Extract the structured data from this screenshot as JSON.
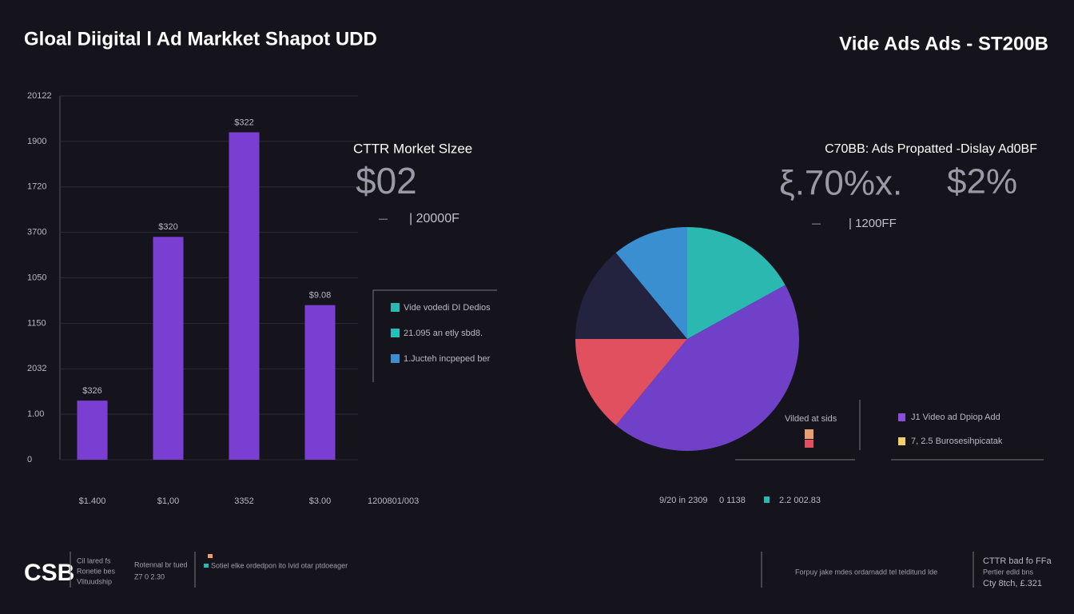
{
  "header": {
    "title": "Gloal Diigital l Ad Markket Shapot UDD",
    "subtitle": "Vide Ads Ads - ST200B"
  },
  "chart_data": [
    {
      "type": "bar",
      "categories": [
        "$1.400",
        "$1,00",
        "3352",
        "$3.00"
      ],
      "values": [
        1.3,
        4.9,
        7.2,
        3.4
      ],
      "annotations": [
        "$326",
        "$320",
        "$322",
        "$9.08"
      ],
      "color": "#7a3fd2",
      "ylim": [
        0,
        8
      ],
      "yticks": [
        0,
        {
          "value": 1,
          "label": "1.00"
        },
        {
          "value": 2,
          "label": "2032"
        },
        {
          "value": 3,
          "label": "1150"
        },
        {
          "value": 4,
          "label": "1050"
        },
        {
          "value": 5,
          "label": "3700"
        },
        {
          "value": 6,
          "label": "1720"
        },
        {
          "value": 7,
          "label": "1900"
        },
        {
          "value": 8,
          "label": "20122"
        }
      ],
      "grid": true,
      "x_note": "1200801/003"
    },
    {
      "type": "pie",
      "values": [
        17,
        44,
        14,
        14,
        11
      ],
      "colors": [
        "#2bb8b0",
        "#7040c8",
        "#e0505e",
        "#23233f",
        "#3a8fd0"
      ]
    }
  ],
  "middle_panel": {
    "title": "CTTR Morket Slzee",
    "big_value": "$02",
    "dash": "—",
    "sub_value": "| 20000F",
    "legend": [
      {
        "label": "Vide vodedi DI Dedios",
        "color": "#2bb8b0"
      },
      {
        "label": "21.095 an etly sbd8.",
        "color": "#22c0b8"
      },
      {
        "label": "1.Jucteh incpeped ber",
        "color": "#3a8fd0"
      }
    ]
  },
  "right_panel": {
    "title": "C70BB: Ads Propatted -Dislay Ad0BF",
    "big_value_1": "ξ.70%x.",
    "big_value_2": "$2%",
    "dash": "—",
    "sub_value": "| 1200FF",
    "note": "Vilded at sids",
    "legend": [
      {
        "label": "J1 Video ad Dpiop Add",
        "color": "#8a4fd8"
      },
      {
        "label": "7, 2.5 Burosesihpicatak",
        "color": "#f0d060"
      }
    ],
    "bottom": [
      "9/20 in 2309",
      "0 1138",
      "2.2 002.83"
    ]
  },
  "footer": {
    "logo": "CSB",
    "col1": [
      "Cil lared fs",
      "Ronetie bes",
      "Vlituudship"
    ],
    "col2": [
      "Rotennal br tued",
      "Z7 0 2.30"
    ],
    "col3": "Sotiel elke ordedpon ito lvid otar ptdoeager",
    "col4": "Forpuy jake mdes ordarnadd tel telditund lde",
    "col5": [
      "CTTR bad fo FFa",
      "Pertier edld bns",
      "Cty 8tch, £.321"
    ]
  }
}
